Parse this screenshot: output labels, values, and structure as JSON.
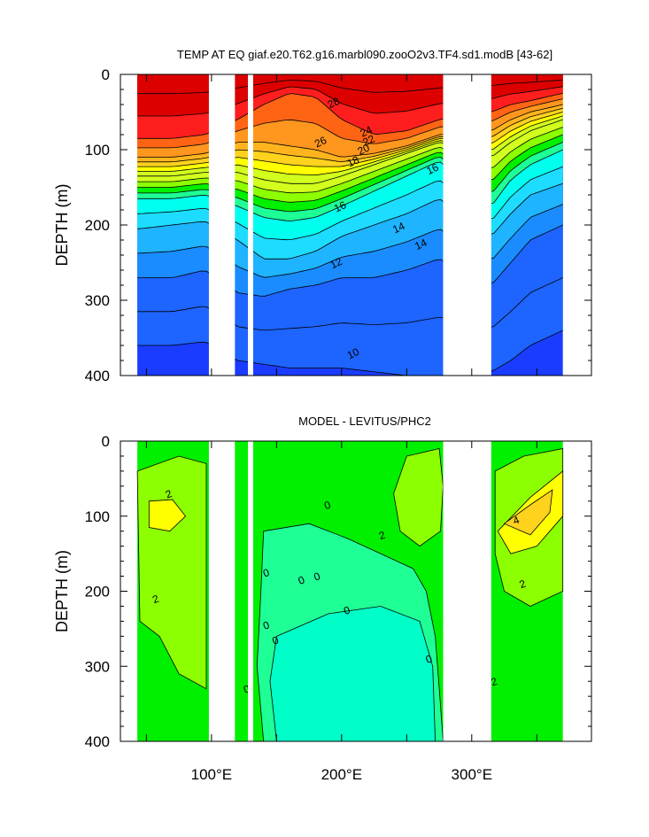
{
  "chart_data": [
    {
      "type": "heatmap",
      "plot_type": "filled contour",
      "title": "TEMP AT EQ giaf.e20.T62.g16.marbl090.zooO2v3.TF4.sd1.modB [43-62]",
      "ylabel": "DEPTH (m)",
      "xlabel": "",
      "xlim": [
        30,
        392
      ],
      "ylim": [
        400,
        0
      ],
      "y_ticks": [
        "0",
        "100",
        "200",
        "300",
        "400"
      ],
      "x_ticks": [
        "100°E",
        "200°E",
        "300°E"
      ],
      "contour_labels": [
        "28",
        "26",
        "24",
        "22",
        "20",
        "18",
        "16",
        "16",
        "14",
        "14",
        "12",
        "10"
      ],
      "fill_colors": [
        "#1a3cff",
        "#1e64ff",
        "#1a8cff",
        "#1eb4ff",
        "#1edcff",
        "#00ffee",
        "#1eff96",
        "#00f000",
        "#8cff00",
        "#d2ff1e",
        "#ffff00",
        "#ffd21e",
        "#ffb41e",
        "#ff961e",
        "#ff6414",
        "#ff1e1e",
        "#dc0000"
      ],
      "temperature_levels": [
        10,
        11,
        12,
        13,
        14,
        15,
        16,
        17,
        18,
        19,
        20,
        21,
        22,
        23,
        24,
        25,
        26,
        27,
        28
      ],
      "land_gaps_longitude": [
        [
          98,
          118
        ],
        [
          128,
          132
        ],
        [
          278,
          315
        ]
      ],
      "ocean_extent_longitude": [
        43,
        370
      ],
      "isotherm_depths_m": {
        "longitude": [
          45,
          70,
          95,
          120,
          140,
          160,
          180,
          200,
          225,
          250,
          275,
          315,
          330,
          345,
          370
        ],
        "T26": [
          85,
          85,
          80,
          60,
          40,
          25,
          30,
          60,
          80,
          75,
          60,
          50,
          40,
          35,
          25
        ],
        "T24": [
          110,
          110,
          105,
          90,
          90,
          95,
          100,
          110,
          105,
          95,
          80,
          75,
          60,
          50,
          40
        ],
        "T20": [
          135,
          135,
          130,
          130,
          140,
          145,
          145,
          135,
          120,
          105,
          90,
          110,
          90,
          75,
          60
        ],
        "T16": [
          165,
          165,
          160,
          175,
          190,
          195,
          190,
          175,
          155,
          135,
          115,
          175,
          140,
          120,
          100
        ],
        "T14": [
          205,
          200,
          195,
          220,
          245,
          245,
          235,
          215,
          200,
          185,
          165,
          215,
          185,
          160,
          145
        ],
        "T12": [
          270,
          270,
          260,
          290,
          295,
          285,
          280,
          270,
          270,
          260,
          245,
          280,
          250,
          220,
          200
        ],
        "T10": [
          360,
          360,
          355,
          380,
          385,
          390,
          390,
          390,
          395,
          400,
          400,
          395,
          380,
          360,
          340
        ]
      }
    },
    {
      "type": "heatmap",
      "plot_type": "filled contour",
      "title": "MODEL - LEVITUS/PHC2",
      "ylabel": "DEPTH (m)",
      "xlabel": "",
      "xlim": [
        30,
        392
      ],
      "ylim": [
        400,
        0
      ],
      "y_ticks": [
        "0",
        "100",
        "200",
        "300",
        "400"
      ],
      "x_ticks": [
        "100°E",
        "200°E",
        "300°E"
      ],
      "contour_labels": [
        "2",
        "2",
        "2",
        "2",
        "2",
        "4",
        "2",
        "0",
        "0",
        "0",
        "0",
        "0",
        "0",
        "0",
        "0",
        "0"
      ],
      "fill_colors": [
        "#00ffc8",
        "#1eff96",
        "#00f000",
        "#8cff00",
        "#d2ff1e",
        "#ffff00",
        "#ffd21e"
      ],
      "difference_levels": [
        -1,
        0,
        1,
        2,
        3,
        4,
        5
      ],
      "land_gaps_longitude": [
        [
          98,
          118
        ],
        [
          128,
          132
        ],
        [
          278,
          315
        ]
      ],
      "ocean_extent_longitude": [
        43,
        370
      ]
    }
  ]
}
